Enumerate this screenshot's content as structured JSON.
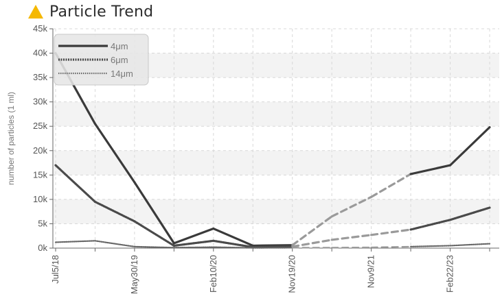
{
  "header": {
    "title": "Particle Trend",
    "icon": "warning-icon",
    "icon_color": "#f5b800"
  },
  "chart_data": {
    "type": "line",
    "title": "Particle Trend",
    "xlabel": "",
    "ylabel": "number of particles (1 ml)",
    "ylim": [
      0,
      45000
    ],
    "yticks": [
      0,
      5000,
      10000,
      15000,
      20000,
      25000,
      30000,
      35000,
      40000,
      45000
    ],
    "ytick_labels": [
      "0k",
      "5k",
      "10k",
      "15k",
      "20k",
      "25k",
      "30k",
      "35k",
      "40k",
      "45k"
    ],
    "x_positions_count": 12,
    "xtick_labels": [
      "Jul5/18",
      "",
      "May30/19",
      "",
      "Feb10/20",
      "",
      "Nov19/20",
      "",
      "Nov9/21",
      "",
      "Feb22/23",
      ""
    ],
    "grid": true,
    "legend_position": "top-left",
    "series": [
      {
        "name": "4μm",
        "style": "solid-dark",
        "values": [
          40000,
          25500,
          13500,
          1000,
          4000,
          500,
          600,
          6500,
          10500,
          15200,
          17000,
          24800
        ],
        "dashed_segments": [
          [
            6,
            7
          ],
          [
            7,
            8
          ],
          [
            8,
            9
          ]
        ]
      },
      {
        "name": "6μm",
        "style": "dotted-dark",
        "values": [
          17000,
          9500,
          5500,
          500,
          1500,
          200,
          300,
          1700,
          2700,
          3800,
          5800,
          8300
        ],
        "dashed_segments": [
          [
            6,
            7
          ],
          [
            7,
            8
          ],
          [
            8,
            9
          ]
        ]
      },
      {
        "name": "14μm",
        "style": "dotted-light",
        "values": [
          1200,
          1500,
          300,
          100,
          200,
          50,
          80,
          100,
          150,
          300,
          500,
          900
        ],
        "dashed_segments": [
          [
            6,
            7
          ],
          [
            7,
            8
          ],
          [
            8,
            9
          ]
        ]
      }
    ],
    "colors": {
      "s4": "#3a3a3a",
      "s6": "#4a4a4a",
      "s14": "#666666",
      "interp": "#9a9a9a",
      "grid": "#d8d8d8",
      "band": "#f3f3f3",
      "axis": "#666666"
    }
  }
}
